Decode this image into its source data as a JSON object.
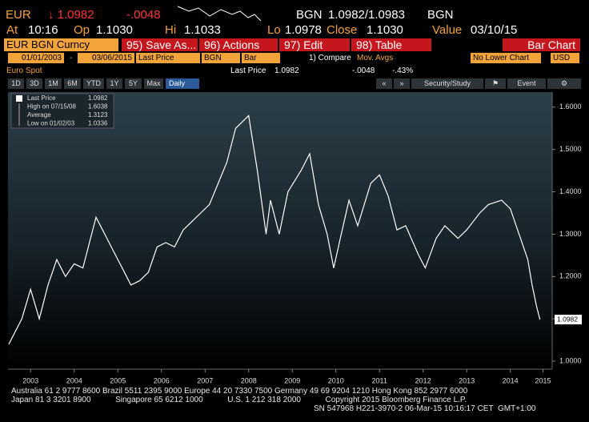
{
  "quote": {
    "ticker": "EUR",
    "last": "↓ 1.0982",
    "change": "-.0048",
    "currency": "BGN",
    "bid_ask": "1.0982/1.0983",
    "currency2": "BGN"
  },
  "stats": [
    {
      "label": "At",
      "value": "10:16"
    },
    {
      "label": "Op",
      "value": "1.1030"
    },
    {
      "label": "Hi",
      "value": "1.1033"
    },
    {
      "label": "Lo",
      "value": "1.0978"
    },
    {
      "label": "Close",
      "value": "1.1030"
    },
    {
      "label": "Value",
      "value": "03/10/15"
    }
  ],
  "toolbar": {
    "security": "EUR BGN Curncy",
    "buttons": [
      "95) Save As...",
      "96) Actions",
      "97) Edit",
      "98) Table"
    ],
    "view": "Bar Chart"
  },
  "settings": {
    "start": "01/01/2003",
    "dash": "-",
    "end": "03/06/2015",
    "field": "Last Price",
    "currency": "BGN",
    "style": "Bar",
    "compare": "1) Compare",
    "mov_avgs": "Mov. Avgs",
    "lower": "No Lower Chart",
    "ccy": "USD"
  },
  "info": {
    "name": "Euro Spot",
    "field": "Last Price",
    "last": "1.0982",
    "change": "-.0048",
    "pct": "-.43%"
  },
  "periods": [
    "1D",
    "3D",
    "1M",
    "6M",
    "YTD",
    "1Y",
    "5Y",
    "Max",
    "Daily"
  ],
  "tools": {
    "study": "Security/Study",
    "event": "Event"
  },
  "footer": [
    "Australia 61 2 9777 8600 Brazil 5511 2395 9000 Europe 44 20 7330 7500 Germany 49 69 9204 1210 Hong Kong 852 2977 6000",
    "Japan 81 3 3201 8900           Singapore 65 6212 1000           U.S. 1 212 318 2000           Copyright 2015 Bloomberg Finance L.P.",
    "SN 547968 H221-3970-2 06-Mar-15 10:16:17 CET  GMT+1:00"
  ],
  "chart_data": {
    "type": "line",
    "color": "#ffffff",
    "x": [
      2003.0,
      2003.3,
      2003.5,
      2003.7,
      2003.9,
      2004.1,
      2004.3,
      2004.5,
      2004.7,
      2004.9,
      2005.0,
      2005.2,
      2005.4,
      2005.6,
      2005.8,
      2006.0,
      2006.2,
      2006.4,
      2006.6,
      2006.8,
      2007.0,
      2007.2,
      2007.4,
      2007.6,
      2007.8,
      2008.0,
      2008.2,
      2008.5,
      2008.7,
      2008.9,
      2009.0,
      2009.2,
      2009.4,
      2009.7,
      2009.9,
      2010.1,
      2010.3,
      2010.45,
      2010.6,
      2010.8,
      2011.0,
      2011.3,
      2011.5,
      2011.7,
      2011.9,
      2012.1,
      2012.4,
      2012.55,
      2012.8,
      2013.0,
      2013.3,
      2013.5,
      2013.8,
      2014.0,
      2014.3,
      2014.5,
      2014.7,
      2014.9,
      2015.0,
      2015.1,
      2015.18
    ],
    "values": [
      1.04,
      1.1,
      1.17,
      1.1,
      1.18,
      1.24,
      1.2,
      1.23,
      1.22,
      1.3,
      1.34,
      1.3,
      1.26,
      1.22,
      1.18,
      1.19,
      1.21,
      1.27,
      1.28,
      1.27,
      1.31,
      1.33,
      1.35,
      1.37,
      1.42,
      1.47,
      1.55,
      1.58,
      1.45,
      1.3,
      1.38,
      1.3,
      1.4,
      1.45,
      1.49,
      1.37,
      1.3,
      1.22,
      1.29,
      1.38,
      1.32,
      1.42,
      1.44,
      1.39,
      1.31,
      1.32,
      1.25,
      1.22,
      1.29,
      1.32,
      1.29,
      1.31,
      1.35,
      1.37,
      1.38,
      1.36,
      1.3,
      1.24,
      1.18,
      1.13,
      1.0982
    ],
    "xlim": [
      2003.0,
      2015.46
    ],
    "ylim": [
      0.983,
      1.63
    ],
    "xticks": [
      {
        "value": 2003.5,
        "label": "2003"
      },
      {
        "value": 2004.5,
        "label": "2004"
      },
      {
        "value": 2005.5,
        "label": "2005"
      },
      {
        "value": 2006.5,
        "label": "2006"
      },
      {
        "value": 2007.5,
        "label": "2007"
      },
      {
        "value": 2008.5,
        "label": "2008"
      },
      {
        "value": 2009.5,
        "label": "2009"
      },
      {
        "value": 2010.5,
        "label": "2010"
      },
      {
        "value": 2011.5,
        "label": "2011"
      },
      {
        "value": 2012.5,
        "label": "2012"
      },
      {
        "value": 2013.5,
        "label": "2013"
      },
      {
        "value": 2014.5,
        "label": "2014"
      },
      {
        "value": 2015.25,
        "label": "2015"
      }
    ],
    "yticks": [
      {
        "value": 1.0,
        "label": "1.0000"
      },
      {
        "value": 1.1,
        "label": "1.1000"
      },
      {
        "value": 1.2,
        "label": "1.2000"
      },
      {
        "value": 1.3,
        "label": "1.3000"
      },
      {
        "value": 1.4,
        "label": "1.4000"
      },
      {
        "value": 1.5,
        "label": "1.5000"
      },
      {
        "value": 1.6,
        "label": "1.6000"
      }
    ],
    "last_label": {
      "value": 1.0982,
      "label": "1.0982"
    },
    "legend": [
      {
        "label": "Last Price",
        "value": "1.0982"
      },
      {
        "label": "High on 07/15/08",
        "value": "1.6038"
      },
      {
        "label": "Average",
        "value": "1.3123"
      },
      {
        "label": "Low on 01/02/03",
        "value": "1.0336"
      }
    ]
  }
}
